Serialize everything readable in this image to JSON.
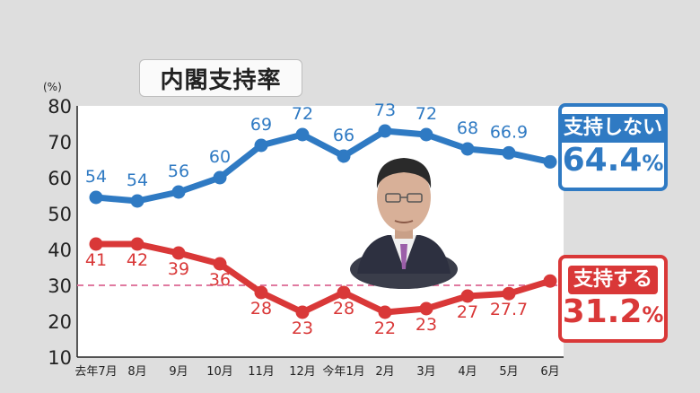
{
  "title": "内閣支持率",
  "unit": "(%)",
  "legend_oppose": {
    "label": "支持しない",
    "value": "64.4",
    "suffix": "%"
  },
  "legend_support": {
    "label": "支持する",
    "value": "31.2",
    "suffix": "%"
  },
  "colors": {
    "oppose": "#2f7ac3",
    "support": "#d93838",
    "reference": "#e07aa0",
    "plot_bg": "#ffffff",
    "page_bg": "#dedede"
  },
  "chart_data": {
    "type": "line",
    "title": "内閣支持率",
    "ylabel": "(%)",
    "ylim": [
      10,
      80
    ],
    "yticks": [
      80,
      70,
      60,
      50,
      40,
      30,
      20,
      10
    ],
    "categories": [
      "去年7月",
      "8月",
      "9月",
      "10月",
      "11月",
      "12月",
      "今年1月",
      "2月",
      "3月",
      "4月",
      "5月",
      "6月"
    ],
    "reference_line": 30,
    "grid": false,
    "series": [
      {
        "name": "支持しない",
        "values": [
          54.5,
          53.5,
          56,
          60,
          69,
          72,
          66,
          73,
          72,
          68,
          66.9,
          64.4
        ],
        "labels": [
          "54",
          "54",
          "56",
          "60",
          "69",
          "72",
          "66",
          "73",
          "72",
          "68",
          "66.9",
          ""
        ]
      },
      {
        "name": "支持する",
        "values": [
          41.5,
          41.5,
          39,
          36,
          28,
          22.5,
          28,
          22.5,
          23.5,
          27,
          27.7,
          31.2
        ],
        "labels": [
          "41",
          "42",
          "39",
          "36",
          "28",
          "23",
          "28",
          "22",
          "23",
          "27",
          "27.7",
          ""
        ]
      }
    ]
  }
}
